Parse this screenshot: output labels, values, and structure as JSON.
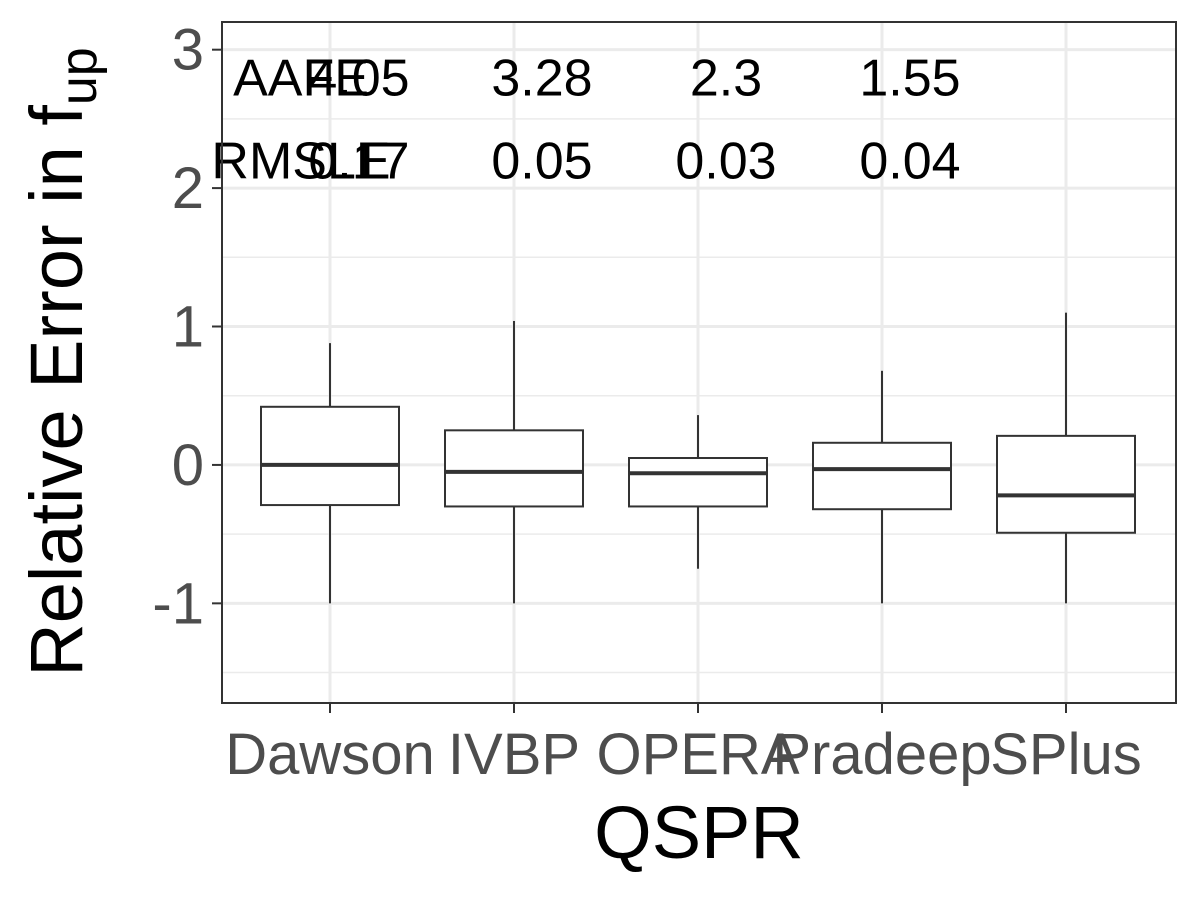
{
  "chart_data": {
    "type": "box",
    "xlabel": "QSPR",
    "ylabel": "Relative Error in f",
    "ylabel_sub": "up",
    "categories": [
      "Dawson",
      "IVBP",
      "OPERA",
      "Pradeep",
      "SPlus"
    ],
    "boxes": [
      {
        "name": "Dawson",
        "min": -1.0,
        "q1": -0.29,
        "median": 0.0,
        "q3": 0.42,
        "max": 0.88
      },
      {
        "name": "IVBP",
        "min": -1.0,
        "q1": -0.3,
        "median": -0.05,
        "q3": 0.25,
        "max": 1.04
      },
      {
        "name": "OPERA",
        "min": -0.75,
        "q1": -0.3,
        "median": -0.06,
        "q3": 0.05,
        "max": 0.36
      },
      {
        "name": "Pradeep",
        "min": -1.0,
        "q1": -0.32,
        "median": -0.03,
        "q3": 0.16,
        "max": 0.68
      },
      {
        "name": "SPlus",
        "min": -1.0,
        "q1": -0.49,
        "median": -0.22,
        "q3": 0.21,
        "max": 1.1
      }
    ],
    "yticks": [
      "-1",
      "0",
      "1",
      "2",
      "3"
    ],
    "ylim": [
      -1.72,
      3.2
    ],
    "grid": true,
    "annotations": [
      {
        "label": "AAFE",
        "y": 2.8,
        "values": [
          "4.05",
          "3.28",
          "2.3",
          "1.55"
        ]
      },
      {
        "label": "RMSLE",
        "y": 2.2,
        "values": [
          "0.17",
          "0.05",
          "0.03",
          "0.04"
        ]
      }
    ]
  }
}
